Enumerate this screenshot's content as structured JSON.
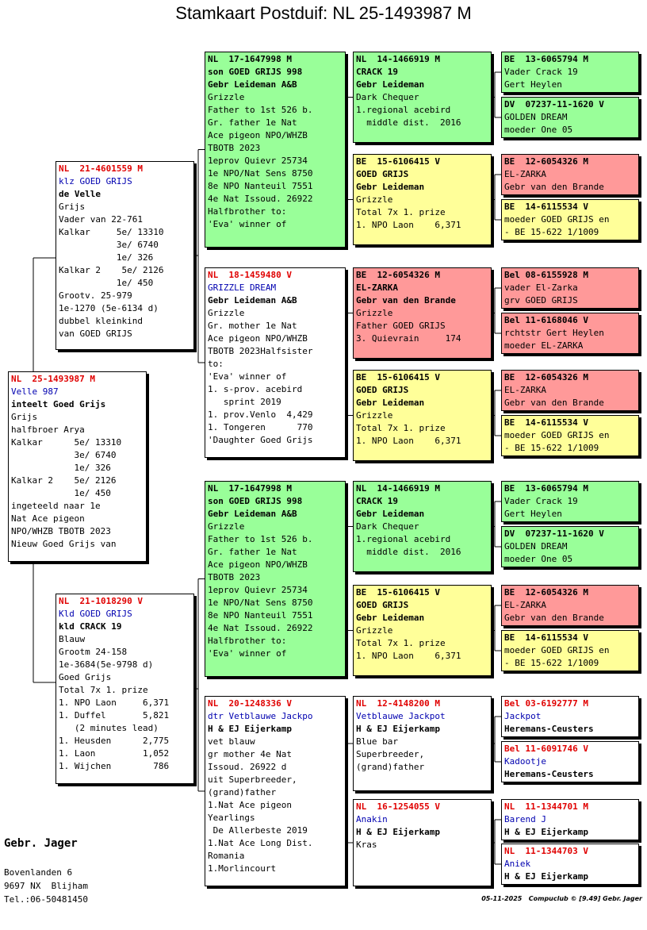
{
  "title": "Stamkaart Postduif: NL  25-1493987 M",
  "boxes": [
    {
      "ring": "NL  25-1493987 M",
      "lines": [
        "Velle 987",
        "inteelt Goed Grijs",
        "Grijs",
        "halfbroer Arya",
        "Kalkar      5e/ 13310",
        "            3e/ 6740",
        "            1e/ 326",
        "Kalkar 2    5e/ 2126",
        "            1e/ 450",
        "ingeteeld naar 1e",
        "Nat Ace pigeon",
        "NPO/WHZB TBOTB 2023",
        "Nieuw Goed Grijs van"
      ]
    },
    {
      "ring": "NL  21-4601559 M",
      "lines": [
        "klz GOED GRIJS",
        "de Velle",
        "Grijs",
        "Vader van 22-761",
        "Kalkar     5e/ 13310",
        "           3e/ 6740",
        "           1e/ 326",
        "Kalkar 2    5e/ 2126",
        "           1e/ 450",
        "Grootv. 25-979",
        "1e-1270 (5e-6134 d)",
        "dubbel kleinkind",
        "van GOED GRIJS"
      ]
    },
    {
      "ring": "NL  21-1018290 V",
      "lines": [
        "Kld GOED GRIJS",
        "kld CRACK 19",
        "Blauw",
        "Grootm 24-158",
        "1e-3684(5e-9798 d)",
        "Goed Grijs",
        "Total 7x 1. prize",
        "1. NPO Laon     6,371",
        "1. Duffel       5,821",
        "   (2 minutes lead)",
        "1. Heusden      2,775",
        "1. Laon         1,052",
        "1. Wijchen        786"
      ]
    },
    {
      "ring": "NL  17-1647998 M",
      "lines": [
        "son GOED GRIJS 998",
        "Gebr Leideman A&B",
        "Grizzle",
        "Father to 1st 526 b.",
        "Gr. father 1e Nat",
        "Ace pigeon NPO/WHZB",
        "TBOTB 2023",
        "1eprov Quievr 25734",
        "1e NPO/Nat Sens 8750",
        "8e NPO Nanteuil 7551",
        "4e Nat Issoud. 26922",
        "Halfbrother to:",
        "'Eva' winner of"
      ]
    },
    {
      "ring": "NL  18-1459480 V",
      "lines": [
        "GRIZZLE DREAM",
        "Gebr Leideman A&B",
        "Grizzle",
        "Gr. mother 1e Nat",
        "Ace pigeon NPO/WHZB",
        "TBOTB 2023Halfsister",
        "to:",
        "'Eva' winner of",
        "1. s-prov. acebird",
        "   sprint 2019",
        "1. prov.Venlo  4,429",
        "1. Tongeren      770",
        "'Daughter Goed Grijs"
      ]
    },
    {
      "ring": "NL  17-1647998 M",
      "lines": [
        "son GOED GRIJS 998",
        "Gebr Leideman A&B",
        "Grizzle",
        "Father to 1st 526 b.",
        "Gr. father 1e Nat",
        "Ace pigeon NPO/WHZB",
        "TBOTB 2023",
        "1eprov Quievr 25734",
        "1e NPO/Nat Sens 8750",
        "8e NPO Nanteuil 7551",
        "4e Nat Issoud. 26922",
        "Halfbrother to:",
        "'Eva' winner of"
      ]
    },
    {
      "ring": "NL  20-1248336 V",
      "lines": [
        "dtr Vetblauwe Jackpo",
        "H & EJ Eijerkamp",
        "vet blauw",
        "gr mother 4e Nat",
        "Issoud. 26922 d",
        "uit Superbreeder,",
        "(grand)father",
        "1.Nat Ace pigeon",
        "Yearlings",
        " De Allerbeste 2019",
        "1.Nat Ace Long Dist.",
        "Romania",
        "1.Morlincourt"
      ]
    },
    {
      "ring": "NL  14-1466919 M",
      "lines": [
        "CRACK 19",
        "Gebr Leideman",
        "Dark Chequer",
        "1.regional acebird",
        "  middle dist.  2016"
      ]
    },
    {
      "ring": "BE  15-6106415 V",
      "lines": [
        "GOED GRIJS",
        "Gebr Leideman",
        "Grizzle",
        "Total 7x 1. prize",
        "1. NPO Laon    6,371"
      ]
    },
    {
      "ring": "BE  12-6054326 M",
      "lines": [
        "EL-ZARKA",
        "Gebr van den Brande",
        "Grizzle",
        "Father GOED GRIJS",
        "3. Quievrain     174"
      ]
    },
    {
      "ring": "BE  15-6106415 V",
      "lines": [
        "GOED GRIJS",
        "Gebr Leideman",
        "Grizzle",
        "Total 7x 1. prize",
        "1. NPO Laon    6,371"
      ]
    },
    {
      "ring": "NL  14-1466919 M",
      "lines": [
        "CRACK 19",
        "Gebr Leideman",
        "Dark Chequer",
        "1.regional acebird",
        "  middle dist.  2016"
      ]
    },
    {
      "ring": "BE  15-6106415 V",
      "lines": [
        "GOED GRIJS",
        "Gebr Leideman",
        "Grizzle",
        "Total 7x 1. prize",
        "1. NPO Laon    6,371"
      ]
    },
    {
      "ring": "NL  12-4148200 M",
      "lines": [
        "Vetblauwe Jackpot",
        "H & EJ Eijerkamp",
        "Blue bar",
        "Superbreeder,",
        "(grand)father"
      ]
    },
    {
      "ring": "NL  16-1254055 V",
      "lines": [
        "Anakin",
        "H & EJ Eijerkamp",
        "Kras"
      ]
    },
    {
      "ring": "BE  13-6065794 M",
      "lines": [
        "Vader Crack 19",
        "Gert Heylen"
      ]
    },
    {
      "ring": "DV  07237-11-1620 V",
      "lines": [
        "GOLDEN DREAM",
        "moeder One 05"
      ]
    },
    {
      "ring": "BE  12-6054326 M",
      "lines": [
        "EL-ZARKA",
        "Gebr van den Brande"
      ]
    },
    {
      "ring": "BE  14-6115534 V",
      "lines": [
        "moeder GOED GRIJS en",
        "- BE 15-622 1/1009"
      ]
    },
    {
      "ring": "Bel 08-6155928 M",
      "lines": [
        "vader El-Zarka",
        "grv GOED GRIJS"
      ]
    },
    {
      "ring": "Bel 11-6168046 V",
      "lines": [
        "rchtstr Gert Heylen",
        "moeder EL-ZARKA"
      ]
    },
    {
      "ring": "BE  12-6054326 M",
      "lines": [
        "EL-ZARKA",
        "Gebr van den Brande"
      ]
    },
    {
      "ring": "BE  14-6115534 V",
      "lines": [
        "moeder GOED GRIJS en",
        "- BE 15-622 1/1009"
      ]
    },
    {
      "ring": "BE  13-6065794 M",
      "lines": [
        "Vader Crack 19",
        "Gert Heylen"
      ]
    },
    {
      "ring": "DV  07237-11-1620 V",
      "lines": [
        "GOLDEN DREAM",
        "moeder One 05"
      ]
    },
    {
      "ring": "BE  12-6054326 M",
      "lines": [
        "EL-ZARKA",
        "Gebr van den Brande"
      ]
    },
    {
      "ring": "BE  14-6115534 V",
      "lines": [
        "moeder GOED GRIJS en",
        "- BE 15-622 1/1009"
      ]
    },
    {
      "ring": "Bel 03-6192777 M",
      "lines": [
        "Jackpot",
        "Heremans-Ceusters"
      ]
    },
    {
      "ring": "Bel 11-6091746 V",
      "lines": [
        "Kadootje",
        "Heremans-Ceusters"
      ]
    },
    {
      "ring": "NL  11-1344701 M",
      "lines": [
        "Barend J",
        "H & EJ Eijerkamp"
      ]
    },
    {
      "ring": "NL  11-1344703 V",
      "lines": [
        "Aniek",
        "H & EJ Eijerkamp"
      ]
    }
  ],
  "owner": {
    "name": "Gebr. Jager",
    "lines": [
      "Bovenlanden 6",
      "9697 NX  Blijham",
      "Tel.:06-50481450"
    ]
  },
  "footer": {
    "date": "05-11-2025",
    "software": "Compuclub © [9.49]  Gebr. Jager"
  }
}
